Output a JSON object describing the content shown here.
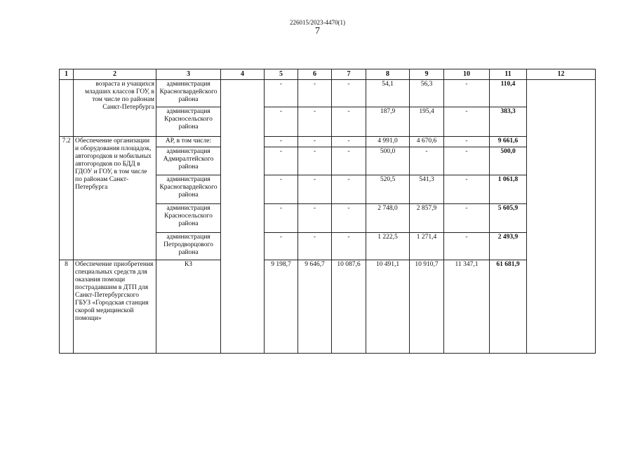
{
  "header": {
    "doc_number": "226015/2023-4470(1)",
    "page_number": "7"
  },
  "columns": [
    "1",
    "2",
    "3",
    "4",
    "5",
    "6",
    "7",
    "8",
    "9",
    "10",
    "11",
    "12"
  ],
  "groups": [
    {
      "num": "",
      "description": "возраста и учащихся младших классов ГОУ, в том числе по районам Санкт-Петербурга",
      "align": "right",
      "rows": [
        {
          "executor": "администрация Красногвардейского района",
          "values": [
            "-",
            "-",
            "-",
            "54,1",
            "56,3",
            "-",
            "110,4"
          ]
        },
        {
          "executor": "администрация Красносельского района",
          "values": [
            "-",
            "-",
            "-",
            "187,9",
            "195,4",
            "-",
            "383,3"
          ]
        }
      ]
    },
    {
      "num": "7.2",
      "description": "Обеспечение организации и оборудования площадок, автогородков и мобильных автогородков по БДД в ГДОУ и ГОУ, в том числе по районам Санкт-Петербурга",
      "align": "left",
      "rows": [
        {
          "executor": "АР, в том числе:",
          "values": [
            "-",
            "-",
            "-",
            "4 991,0",
            "4 670,6",
            "-",
            "9 661,6"
          ]
        },
        {
          "executor": "администрация Адмиралтейского района",
          "values": [
            "-",
            "-",
            "-",
            "500,0",
            "-",
            "-",
            "500,0"
          ]
        },
        {
          "executor": "администрация Красногвардейского района",
          "values": [
            "-",
            "-",
            "-",
            "520,5",
            "541,3",
            "-",
            "1 061,8"
          ]
        },
        {
          "executor": "администрация Красносельского района",
          "values": [
            "-",
            "-",
            "-",
            "2 748,0",
            "2 857,9",
            "-",
            "5 605,9"
          ]
        },
        {
          "executor": "администрация Петродворцового района",
          "values": [
            "-",
            "-",
            "-",
            "1 222,5",
            "1 271,4",
            "-",
            "2 493,9"
          ]
        }
      ]
    },
    {
      "num": "8",
      "description": "Обеспечение приобретения специальных средств для оказания помощи пострадавшим в ДТП для Санкт-Петербургского ГБУЗ «Городская станция скорой медицинской помощи»",
      "align": "left",
      "rows": [
        {
          "executor": "КЗ",
          "values": [
            "9 198,7",
            "9 646,7",
            "10 087,6",
            "10 491,1",
            "10 910,7",
            "11 347,1",
            "61 681,9"
          ]
        }
      ]
    }
  ]
}
